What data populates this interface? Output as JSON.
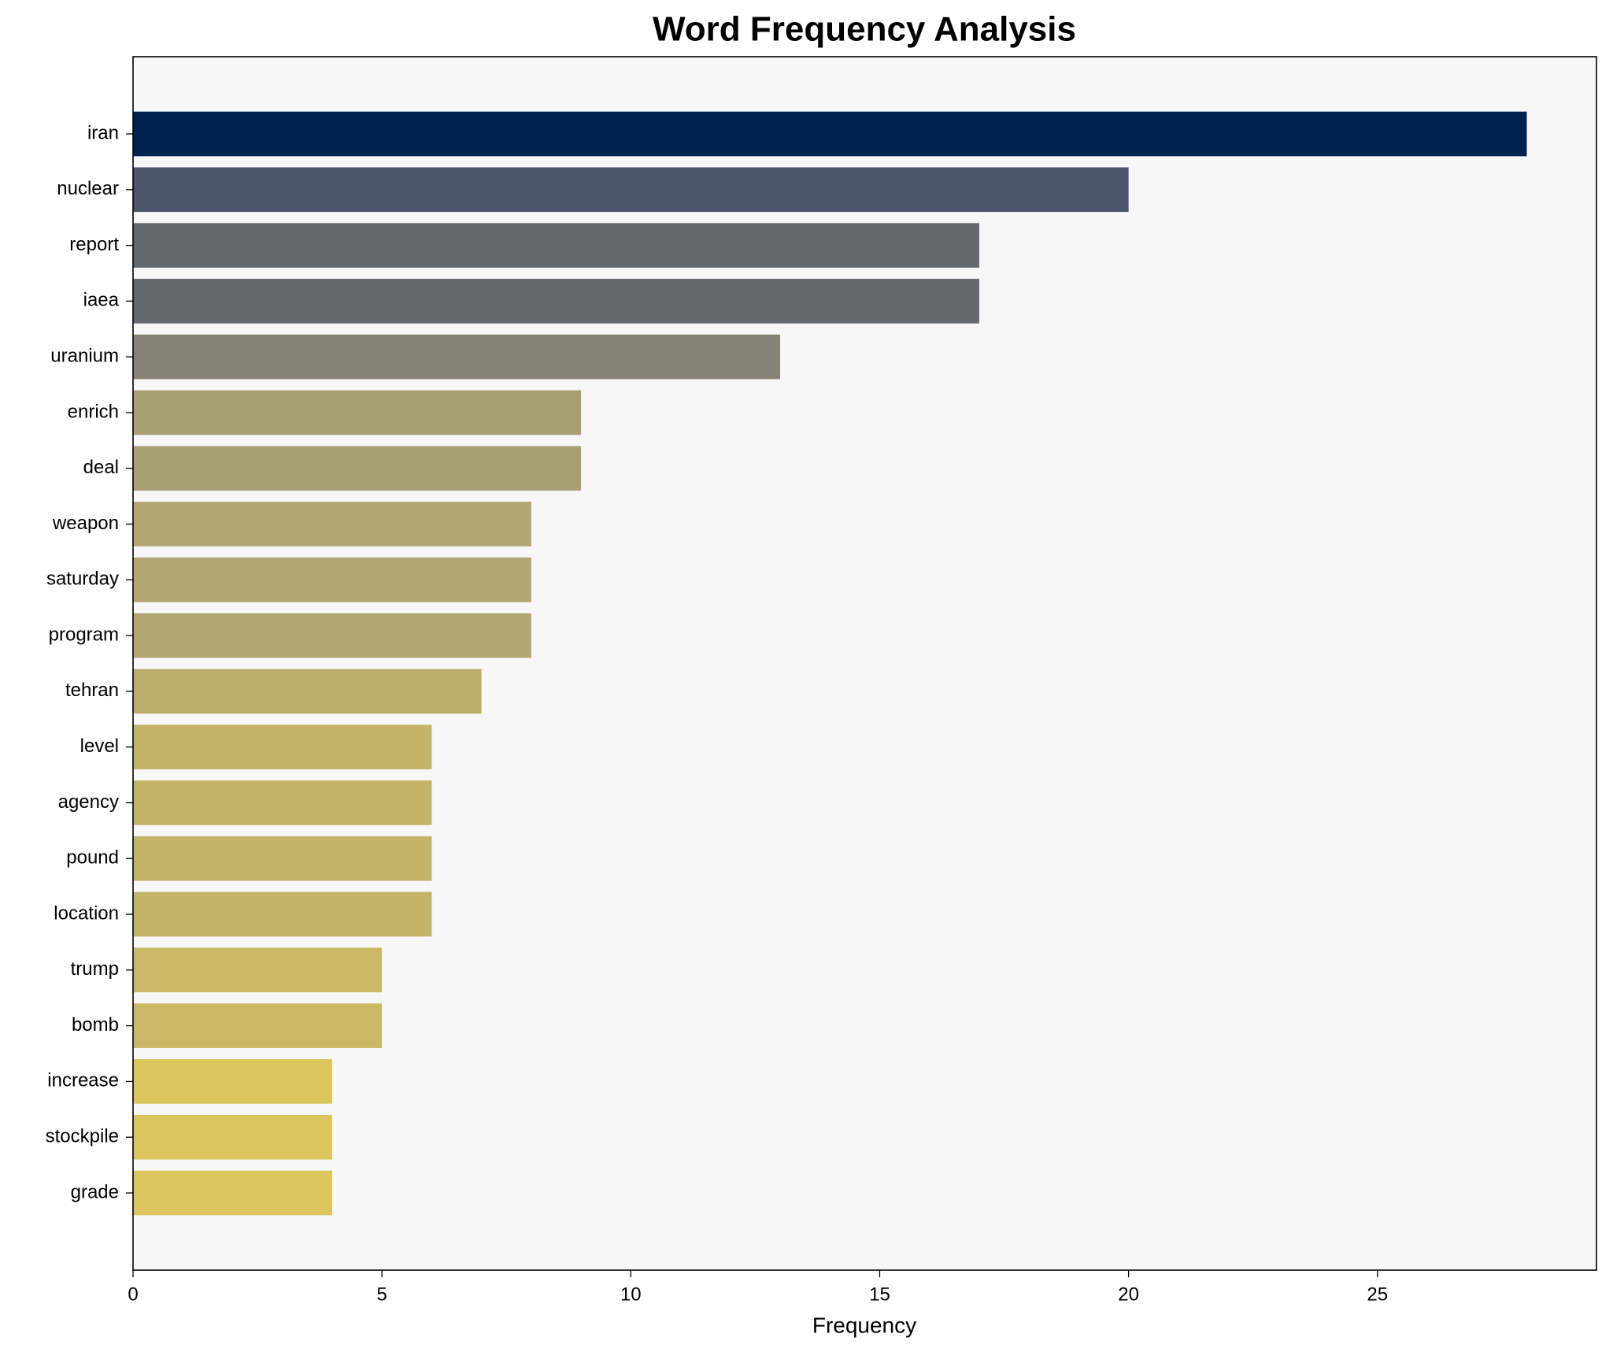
{
  "chart_data": {
    "type": "bar",
    "orientation": "horizontal",
    "title": "Word Frequency Analysis",
    "x_label": "Frequency",
    "categories": [
      "iran",
      "nuclear",
      "report",
      "iaea",
      "uranium",
      "enrich",
      "deal",
      "weapon",
      "saturday",
      "program",
      "tehran",
      "level",
      "agency",
      "pound",
      "location",
      "trump",
      "bomb",
      "increase",
      "stockpile",
      "grade"
    ],
    "values": [
      28,
      20,
      17,
      17,
      13,
      9,
      9,
      8,
      8,
      8,
      7,
      6,
      6,
      6,
      6,
      5,
      5,
      4,
      4,
      4
    ],
    "colors": [
      "#00224e",
      "#4c546c",
      "#666870",
      "#666870",
      "#868276",
      "#a89f74",
      "#a89f74",
      "#b2a672",
      "#b2a672",
      "#b2a672",
      "#bcad6c",
      "#c4b46a",
      "#c4b46a",
      "#c4b46a",
      "#c4b46a",
      "#cbb866",
      "#cbb866",
      "#dbc55c",
      "#dbc55c",
      "#dbc55c"
    ],
    "xlim": [
      0,
      29.4
    ],
    "xticks": [
      0,
      5,
      10,
      15,
      20,
      25
    ],
    "grid": false
  }
}
